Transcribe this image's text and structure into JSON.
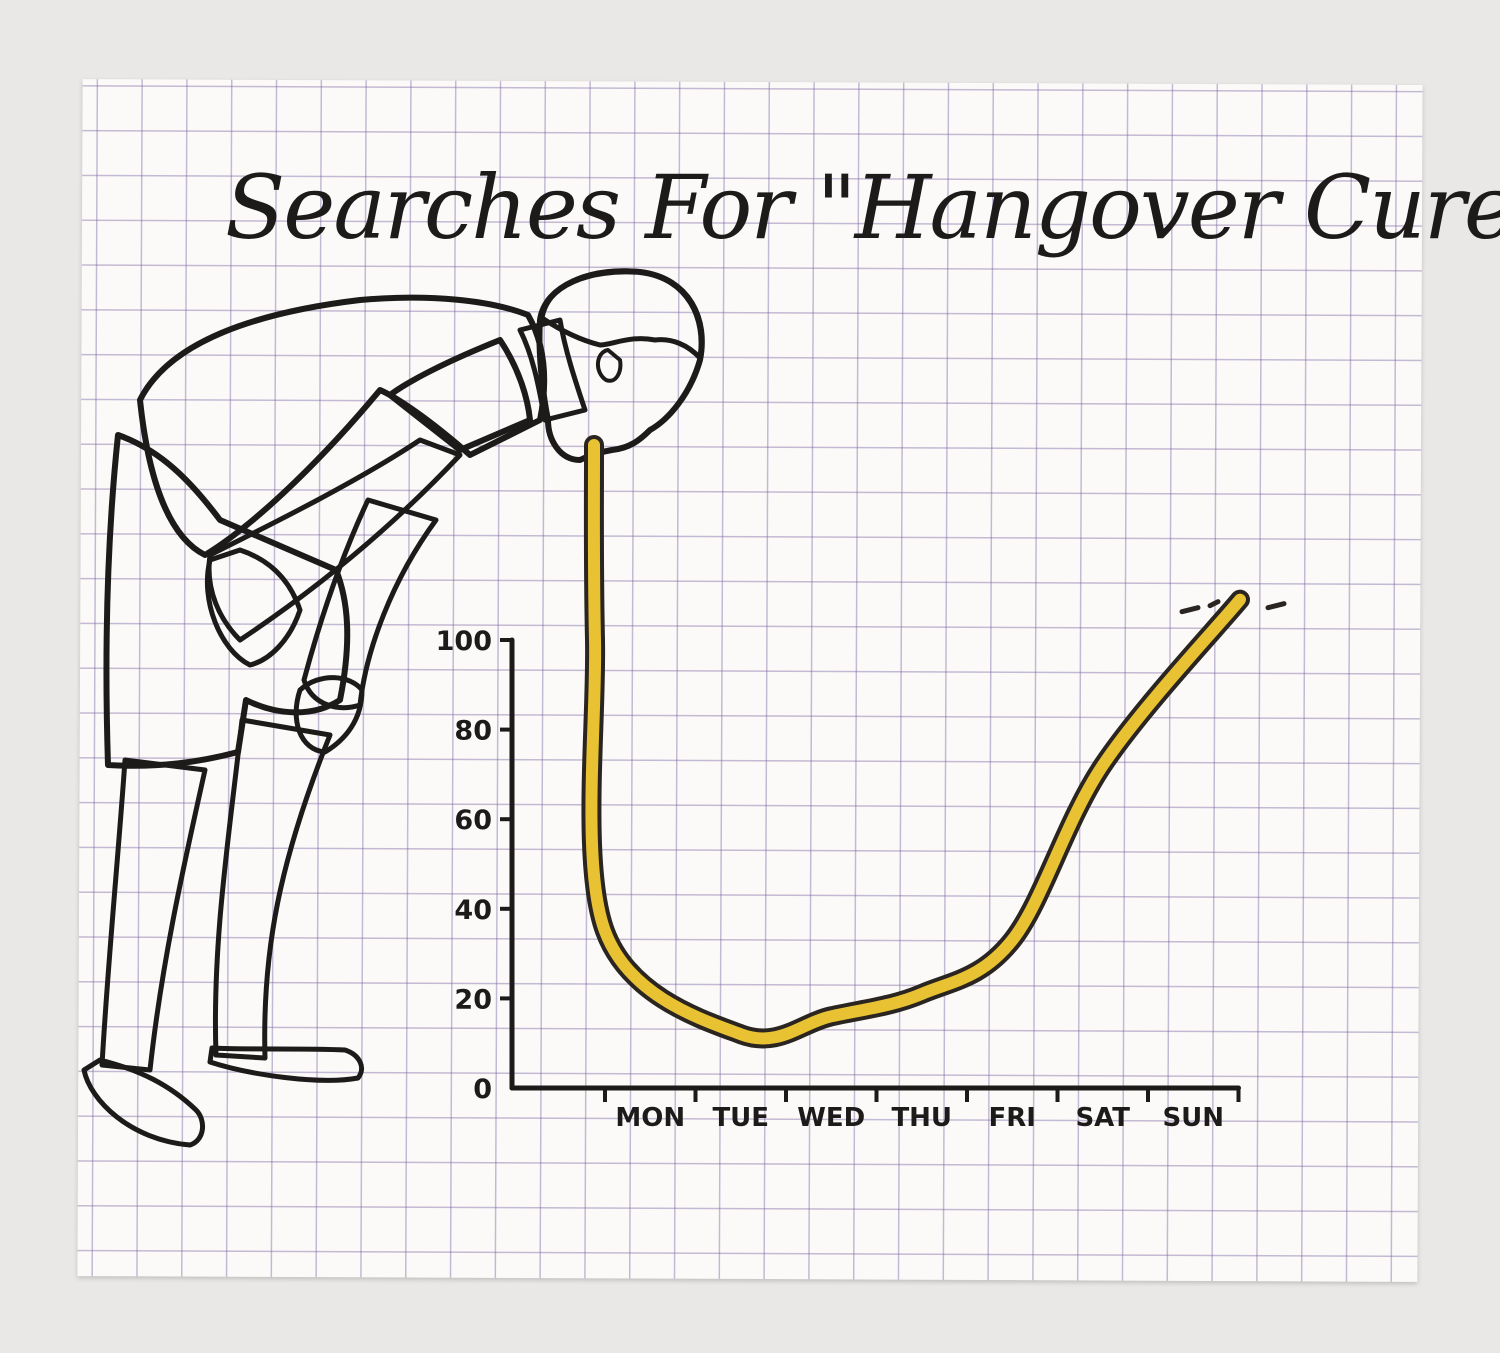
{
  "chart_data": {
    "type": "line",
    "title": "Searches For \"Hangover Cure\"",
    "xlabel": "",
    "ylabel": "",
    "categories": [
      "MON",
      "TUE",
      "WED",
      "THU",
      "FRI",
      "SAT",
      "SUN"
    ],
    "y_ticks": [
      "0",
      "20",
      "40",
      "60",
      "80",
      "100"
    ],
    "ylim": [
      0,
      100
    ],
    "series": [
      {
        "x": [
          "MON",
          "MON",
          "TUE",
          "WED",
          "THU",
          "FRI",
          "SAT",
          "SUN"
        ],
        "values": [
          100,
          35,
          12,
          16,
          21,
          33,
          72,
          109
        ]
      }
    ],
    "grid": true,
    "legend": "none",
    "colors": {
      "line": "#e8c232",
      "line_edge": "#2a2520"
    }
  },
  "illustration": {
    "subject": "man bent over vomiting the line",
    "colors": {
      "shirt": "#7dba2e",
      "shorts": "#9a6b2a",
      "skin": "#f1a06e",
      "hair": "#4a2d1c",
      "sandals": "#6b3a1e"
    }
  }
}
